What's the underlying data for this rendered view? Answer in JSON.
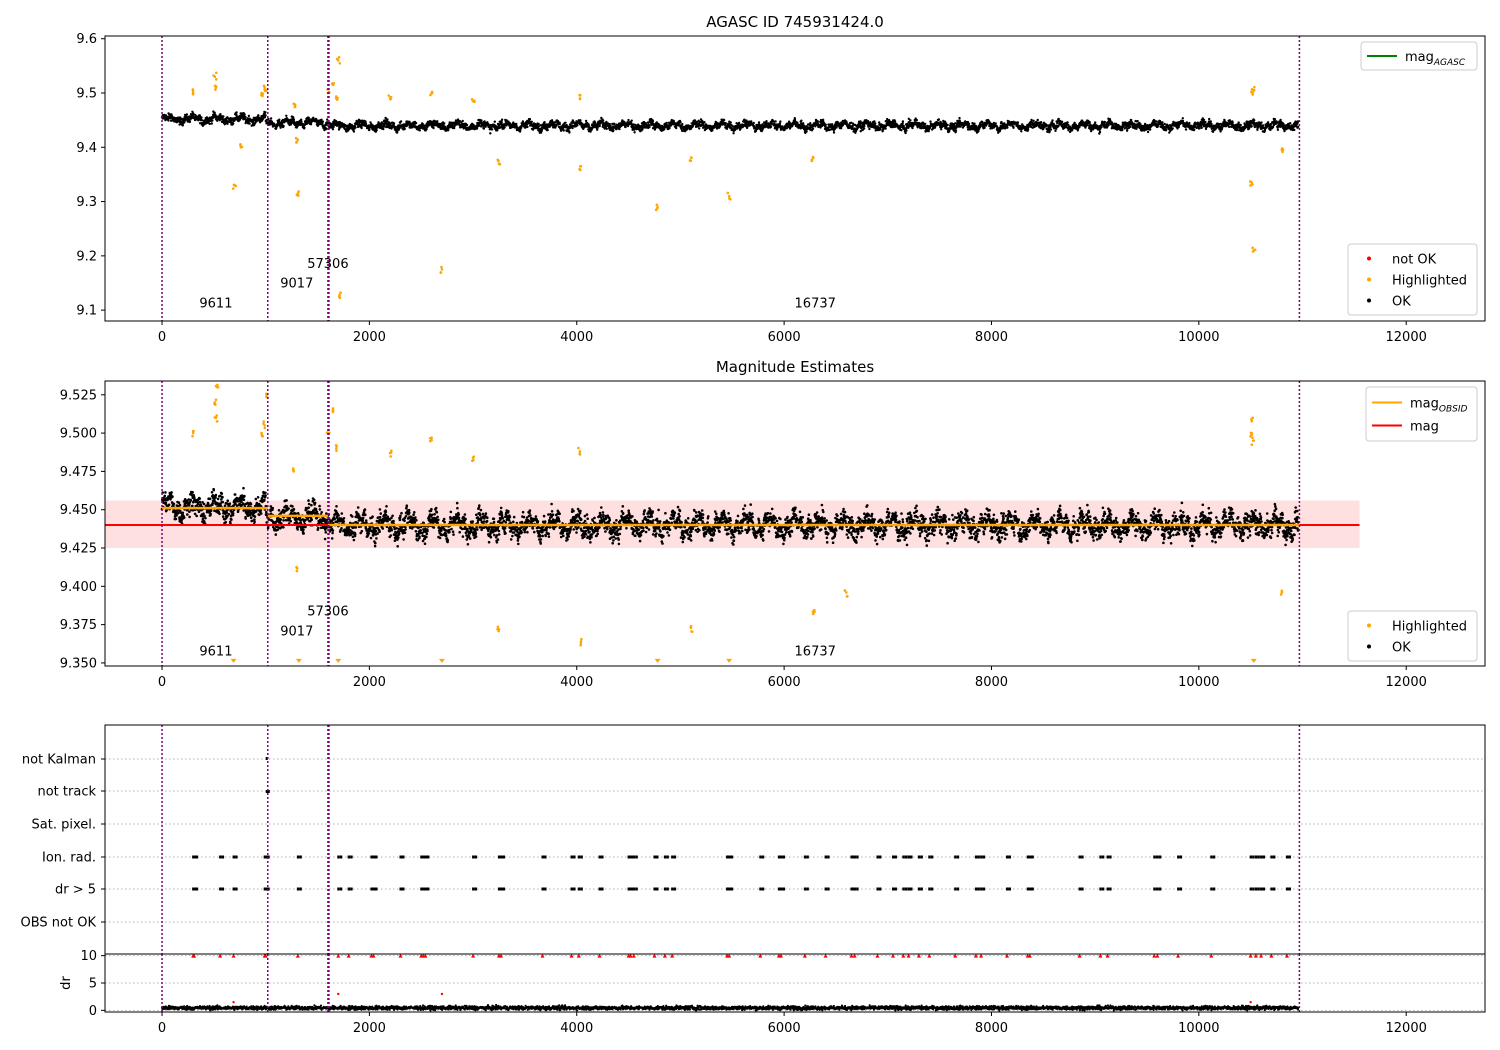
{
  "colors": {
    "ok": "#000000",
    "highlighted": "#ffa500",
    "not_ok": "#ff0000",
    "mag_agasc": "#008000",
    "mag": "#ff0000",
    "mag_obsid": "#ffa500",
    "obsid_line": "#800080",
    "mag_band": "#ffcccc",
    "grid": "#b0b0b0"
  },
  "chart_data": [
    {
      "type": "scatter",
      "title": "AGASC ID 745931424.0",
      "xlabel": "",
      "ylabel": "",
      "xlim": [
        -550,
        12760
      ],
      "ylim": [
        9.08,
        9.605
      ],
      "xticks": [
        0,
        2000,
        4000,
        6000,
        8000,
        10000,
        12000
      ],
      "yticks": [
        9.1,
        9.2,
        9.3,
        9.4,
        9.5,
        9.6
      ],
      "ytick_labels": [
        "9.1",
        "9.2",
        "9.3",
        "9.4",
        "9.5",
        "9.6"
      ],
      "legend_upper": {
        "placement": "top-right",
        "entries": [
          {
            "label": "mag",
            "sub": "AGASC",
            "marker": "line",
            "color": "#008000"
          }
        ]
      },
      "legend_lower": {
        "placement": "bottom-right",
        "entries": [
          {
            "label": "not OK",
            "marker": "dot",
            "color": "#ff0000"
          },
          {
            "label": "Highlighted",
            "marker": "dot",
            "color": "#ffa500"
          },
          {
            "label": "OK",
            "marker": "dot",
            "color": "#000000"
          }
        ]
      },
      "series": [
        {
          "name": "OK",
          "baseline": [
            [
              0,
              9.452
            ],
            [
              1000,
              9.445
            ],
            [
              1600,
              9.44
            ],
            [
              10960,
              9.44
            ]
          ],
          "noise": 0.012,
          "x_range": [
            0,
            10960
          ]
        },
        {
          "name": "Highlighted",
          "points": [
            [
              300,
              9.5
            ],
            [
              510,
              9.53
            ],
            [
              520,
              9.51
            ],
            [
              700,
              9.33
            ],
            [
              760,
              9.4
            ],
            [
              960,
              9.5
            ],
            [
              990,
              9.51
            ],
            [
              1010,
              9.505
            ],
            [
              1270,
              9.48
            ],
            [
              1300,
              9.41
            ],
            [
              1310,
              9.315
            ],
            [
              1600,
              9.5
            ],
            [
              1650,
              9.515
            ],
            [
              1680,
              9.49
            ],
            [
              1700,
              9.56
            ],
            [
              1710,
              9.125
            ],
            [
              2200,
              9.49
            ],
            [
              2600,
              9.5
            ],
            [
              2700,
              9.175
            ],
            [
              3000,
              9.485
            ],
            [
              3250,
              9.37
            ],
            [
              4030,
              9.49
            ],
            [
              4040,
              9.365
            ],
            [
              4780,
              9.29
            ],
            [
              5100,
              9.375
            ],
            [
              5470,
              9.31
            ],
            [
              6280,
              9.38
            ],
            [
              10510,
              9.335
            ],
            [
              10520,
              9.5
            ],
            [
              10525,
              9.505
            ],
            [
              10530,
              9.21
            ],
            [
              10800,
              9.395
            ]
          ]
        }
      ],
      "obsid_lines": [
        0,
        1020,
        1600,
        1605,
        1610,
        10970
      ],
      "annotations": [
        {
          "text": "9611",
          "x": 520,
          "y": 9.105
        },
        {
          "text": "9017",
          "x": 1300,
          "y": 9.142
        },
        {
          "text": "57306",
          "x": 1600,
          "y": 9.178
        },
        {
          "text": "16737",
          "x": 6300,
          "y": 9.105
        }
      ]
    },
    {
      "type": "scatter",
      "title": "Magnitude Estimates",
      "xlabel": "",
      "ylabel": "",
      "xlim": [
        -550,
        12760
      ],
      "ylim": [
        9.348,
        9.534
      ],
      "xticks": [
        0,
        2000,
        4000,
        6000,
        8000,
        10000,
        12000
      ],
      "yticks": [
        9.35,
        9.375,
        9.4,
        9.425,
        9.45,
        9.475,
        9.5,
        9.525
      ],
      "ytick_labels": [
        "9.350",
        "9.375",
        "9.400",
        "9.425",
        "9.450",
        "9.475",
        "9.500",
        "9.525"
      ],
      "legend_upper": {
        "placement": "top-right",
        "entries": [
          {
            "label": "mag",
            "sub": "OBSID",
            "marker": "line",
            "color": "#ffa500"
          },
          {
            "label": "mag",
            "marker": "line",
            "color": "#ff0000"
          }
        ]
      },
      "legend_lower": {
        "placement": "bottom-right",
        "entries": [
          {
            "label": "Highlighted",
            "marker": "dot",
            "color": "#ffa500"
          },
          {
            "label": "OK",
            "marker": "dot",
            "color": "#000000"
          }
        ]
      },
      "mag": {
        "value": 9.44,
        "band": [
          9.425,
          9.456
        ],
        "x_range": [
          -550,
          11550
        ]
      },
      "mag_obsid": [
        {
          "x": [
            0,
            1020
          ],
          "value": 9.451
        },
        {
          "x": [
            1020,
            1600
          ],
          "value": 9.446
        },
        {
          "x": [
            1600,
            10970
          ],
          "value": 9.44
        }
      ],
      "series": [
        {
          "name": "OK",
          "baseline": [
            [
              0,
              9.452
            ],
            [
              1000,
              9.445
            ],
            [
              1600,
              9.44
            ],
            [
              10960,
              9.44
            ]
          ],
          "noise": 0.012,
          "x_range": [
            0,
            10960
          ]
        },
        {
          "name": "Highlighted",
          "points": [
            [
              300,
              9.5
            ],
            [
              510,
              9.52
            ],
            [
              520,
              9.51
            ],
            [
              530,
              9.53
            ],
            [
              960,
              9.5
            ],
            [
              990,
              9.505
            ],
            [
              1010,
              9.525
            ],
            [
              1270,
              9.475
            ],
            [
              1300,
              9.41
            ],
            [
              1600,
              9.5
            ],
            [
              1650,
              9.515
            ],
            [
              1680,
              9.49
            ],
            [
              2200,
              9.487
            ],
            [
              2600,
              9.497
            ],
            [
              3000,
              9.484
            ],
            [
              3250,
              9.372
            ],
            [
              4030,
              9.488
            ],
            [
              4040,
              9.363
            ],
            [
              5100,
              9.373
            ],
            [
              6280,
              9.382
            ],
            [
              6600,
              9.396
            ],
            [
              10510,
              9.5
            ],
            [
              10520,
              9.51
            ],
            [
              10525,
              9.495
            ],
            [
              10800,
              9.396
            ]
          ]
        },
        {
          "name": "Highlighted (clipped below)",
          "points": [
            [
              690,
              9.35
            ],
            [
              1320,
              9.35
            ],
            [
              1700,
              9.35
            ],
            [
              2700,
              9.35
            ],
            [
              4780,
              9.35
            ],
            [
              5470,
              9.35
            ],
            [
              10530,
              9.35
            ]
          ]
        }
      ],
      "obsid_lines": [
        0,
        1020,
        1600,
        1605,
        1610,
        10970
      ],
      "annotations": [
        {
          "text": "9611",
          "x": 520,
          "y": 9.355
        },
        {
          "text": "9017",
          "x": 1300,
          "y": 9.368
        },
        {
          "text": "57306",
          "x": 1600,
          "y": 9.381
        },
        {
          "text": "16737",
          "x": 6300,
          "y": 9.355
        }
      ]
    },
    {
      "type": "scatter",
      "title": "",
      "xlabel": "",
      "ylabel": "",
      "xlim": [
        -550,
        12760
      ],
      "ytick_labels": [
        "not Kalman",
        "not track",
        "Sat. pixel.",
        "Ion. rad.",
        "dr > 5",
        "OBS not OK"
      ],
      "flag_times": [
        300,
        310,
        560,
        690,
        990,
        1000,
        1310,
        1700,
        1800,
        2020,
        2040,
        2300,
        2500,
        2520,
        2540,
        3000,
        3250,
        3270,
        3670,
        3950,
        4020,
        4220,
        4500,
        4520,
        4550,
        4750,
        4850,
        4920,
        5450,
        5470,
        5770,
        5950,
        5970,
        6200,
        6400,
        6650,
        6680,
        6900,
        7050,
        7150,
        7200,
        7300,
        7400,
        7650,
        7850,
        7900,
        8150,
        8350,
        8370,
        8850,
        9050,
        9120,
        9570,
        9600,
        9800,
        10120,
        10500,
        10550,
        10600,
        10700,
        10850
      ],
      "track_flags": [
        1010,
        1020
      ],
      "kalman_flags": [
        1010
      ],
      "obsid_lines": [
        0,
        1020,
        1600,
        1605,
        1610,
        10970
      ]
    },
    {
      "type": "scatter",
      "title": "",
      "xlabel": "",
      "ylabel": "dr",
      "xlim": [
        -550,
        12760
      ],
      "ylim": [
        -0.3,
        10.3
      ],
      "yticks": [
        0,
        5,
        10
      ],
      "ytick_labels": [
        "0",
        "5",
        "10"
      ],
      "xticks": [
        0,
        2000,
        4000,
        6000,
        8000,
        10000,
        12000
      ],
      "series": [
        {
          "name": "dr",
          "mean": 0.45,
          "noise": 0.35,
          "x_range": [
            0,
            10960
          ]
        },
        {
          "name": "dr (capped at 10)",
          "y": 10
        }
      ],
      "extra_points": [
        [
          1700,
          3.0
        ],
        [
          2700,
          3.0
        ],
        [
          690,
          1.5
        ],
        [
          10500,
          1.5
        ]
      ],
      "obsid_lines": [
        0,
        1020,
        1600,
        1605,
        1610,
        10970
      ]
    }
  ]
}
